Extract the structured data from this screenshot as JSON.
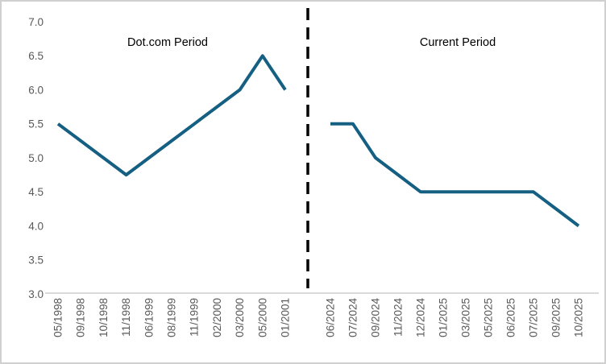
{
  "chart_data": {
    "type": "line",
    "title": "",
    "xlabel": "",
    "ylabel": "",
    "ylim": [
      3.0,
      7.0
    ],
    "ytick_step": 0.5,
    "yticks": [
      "7.0",
      "6.5",
      "6.0",
      "5.5",
      "5.0",
      "4.5",
      "4.0",
      "3.5",
      "3.0"
    ],
    "grid": "off",
    "legend": "none",
    "annotations": [
      "Dot.com Period",
      "Current Period"
    ],
    "divider": {
      "style": "dashed-vertical",
      "color": "#000000",
      "position": "between panels"
    },
    "line_color": "#156082",
    "axis_line_color": "#d9d9d9",
    "tick_label_color": "#595959",
    "series": [
      {
        "name": "Dot.com Period",
        "categories": [
          "05/1998",
          "09/1998",
          "10/1998",
          "11/1998",
          "06/1999",
          "08/1999",
          "11/1999",
          "02/2000",
          "03/2000",
          "05/2000",
          "01/2001"
        ],
        "values": [
          5.5,
          5.25,
          5.0,
          4.75,
          5.0,
          5.25,
          5.5,
          5.75,
          6.0,
          6.5,
          6.0
        ]
      },
      {
        "name": "Current Period",
        "categories": [
          "06/2024",
          "07/2024",
          "09/2024",
          "11/2024",
          "12/2024",
          "01/2025",
          "03/2025",
          "05/2025",
          "06/2025",
          "07/2025",
          "09/2025",
          "10/2025"
        ],
        "values": [
          5.5,
          5.5,
          5.0,
          4.75,
          4.5,
          4.5,
          4.5,
          4.5,
          4.5,
          4.5,
          4.25,
          4.0
        ]
      }
    ]
  }
}
